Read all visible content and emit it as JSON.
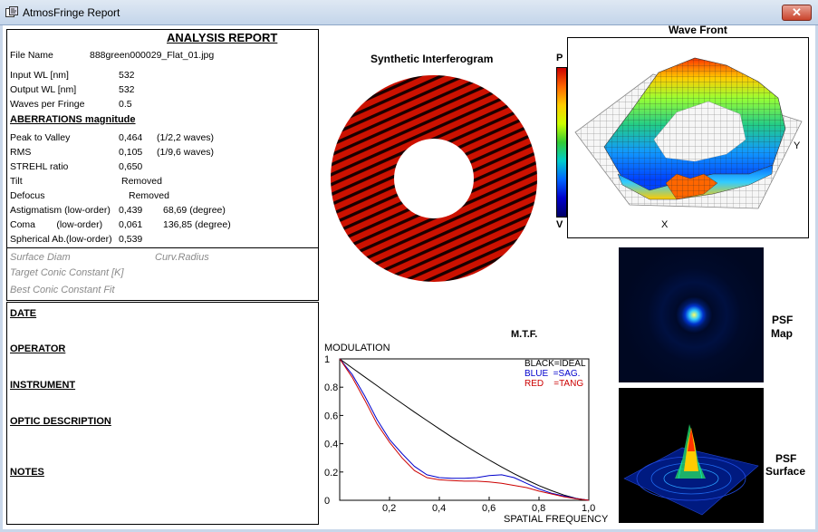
{
  "window": {
    "title": "AtmosFringe  Report",
    "close_symbol": "✕"
  },
  "report": {
    "heading": "ANALYSIS  REPORT",
    "file_name_label": "File Name",
    "file_name_value": "888green000029_Flat_01.jpg",
    "input_wl_label": "Input  WL [nm]",
    "input_wl_value": "532",
    "output_wl_label": "Output WL [nm]",
    "output_wl_value": "532",
    "waves_per_fringe_label": "Waves per Fringe",
    "waves_per_fringe_value": "0.5",
    "aberrations_heading": "ABERRATIONS magnitude",
    "ptv_label": "Peak to Valley",
    "ptv_value": "0,464",
    "ptv_waves": "(1/2,2 waves)",
    "rms_label": "RMS",
    "rms_value": "0,105",
    "rms_waves": "(1/9,6 waves)",
    "strehl_label": "STREHL ratio",
    "strehl_value": "0,650",
    "tilt_label": "Tilt",
    "tilt_value": "Removed",
    "defocus_label": "Defocus",
    "defocus_value": "Removed",
    "astig_label": "Astigmatism  (low-order)",
    "astig_value": "0,439",
    "astig_angle": "68,69  (degree)",
    "coma_label": "Coma        (low-order)",
    "coma_value": "0,061",
    "coma_angle": "136,85  (degree)",
    "spherical_label": "Spherical Ab.(low-order)",
    "spherical_value": "0,539",
    "surface_diam_label": "Surface Diam",
    "curv_radius_label": "Curv.Radius",
    "target_conic_label": "Target Conic Constant [K]",
    "best_conic_label": "Best Conic Constant Fit"
  },
  "notes": {
    "date_label": "DATE",
    "operator_label": "OPERATOR",
    "instrument_label": "INSTRUMENT",
    "optic_description_label": "OPTIC DESCRIPTION",
    "notes_label": "NOTES"
  },
  "interferogram": {
    "title": "Synthetic Interferogram"
  },
  "wavefront": {
    "title": "Wave Front",
    "scale_top": "P",
    "scale_bottom": "V",
    "x_label": "X",
    "y_label": "Y"
  },
  "psf": {
    "map_label_1": "PSF",
    "map_label_2": "Map",
    "surface_label_1": "PSF",
    "surface_label_2": "Surface"
  },
  "chart_data": {
    "type": "line",
    "title": "M.T.F.",
    "ylabel": "MODULATION",
    "xlabel": "SPATIAL FREQUENCY",
    "xlim": [
      0,
      1
    ],
    "ylim": [
      0,
      1
    ],
    "x_ticks": [
      "0,2",
      "0,4",
      "0,6",
      "0,8",
      "1,0"
    ],
    "y_ticks": [
      "0",
      "0.2",
      "0.4",
      "0.6",
      "0.8",
      "1"
    ],
    "legend": [
      "BLACK=IDEAL",
      "BLUE  =SAG.",
      "RED    =TANG"
    ],
    "legend_placement": "top-right",
    "x": [
      0,
      0.05,
      0.1,
      0.15,
      0.2,
      0.25,
      0.3,
      0.35,
      0.4,
      0.45,
      0.5,
      0.55,
      0.6,
      0.65,
      0.7,
      0.75,
      0.8,
      0.85,
      0.9,
      0.95,
      1.0
    ],
    "series": [
      {
        "name": "IDEAL",
        "color": "#000000",
        "values": [
          1.0,
          0.936,
          0.873,
          0.81,
          0.747,
          0.685,
          0.624,
          0.564,
          0.505,
          0.447,
          0.391,
          0.337,
          0.285,
          0.235,
          0.188,
          0.144,
          0.104,
          0.068,
          0.037,
          0.013,
          0.0
        ]
      },
      {
        "name": "SAG.",
        "color": "#0000cc",
        "values": [
          1.0,
          0.89,
          0.74,
          0.57,
          0.43,
          0.33,
          0.24,
          0.18,
          0.16,
          0.155,
          0.155,
          0.16,
          0.175,
          0.18,
          0.16,
          0.12,
          0.08,
          0.05,
          0.03,
          0.012,
          0.0
        ]
      },
      {
        "name": "TANG",
        "color": "#cc0000",
        "values": [
          1.0,
          0.87,
          0.71,
          0.54,
          0.41,
          0.3,
          0.21,
          0.16,
          0.145,
          0.14,
          0.135,
          0.135,
          0.13,
          0.12,
          0.105,
          0.09,
          0.065,
          0.045,
          0.025,
          0.01,
          0.0
        ]
      }
    ]
  },
  "colors": {
    "fringe_red": "#cc1100",
    "fringe_dark": "#1a0000",
    "titlebar": "#c4d5ea",
    "close_button": "#c9432b"
  }
}
